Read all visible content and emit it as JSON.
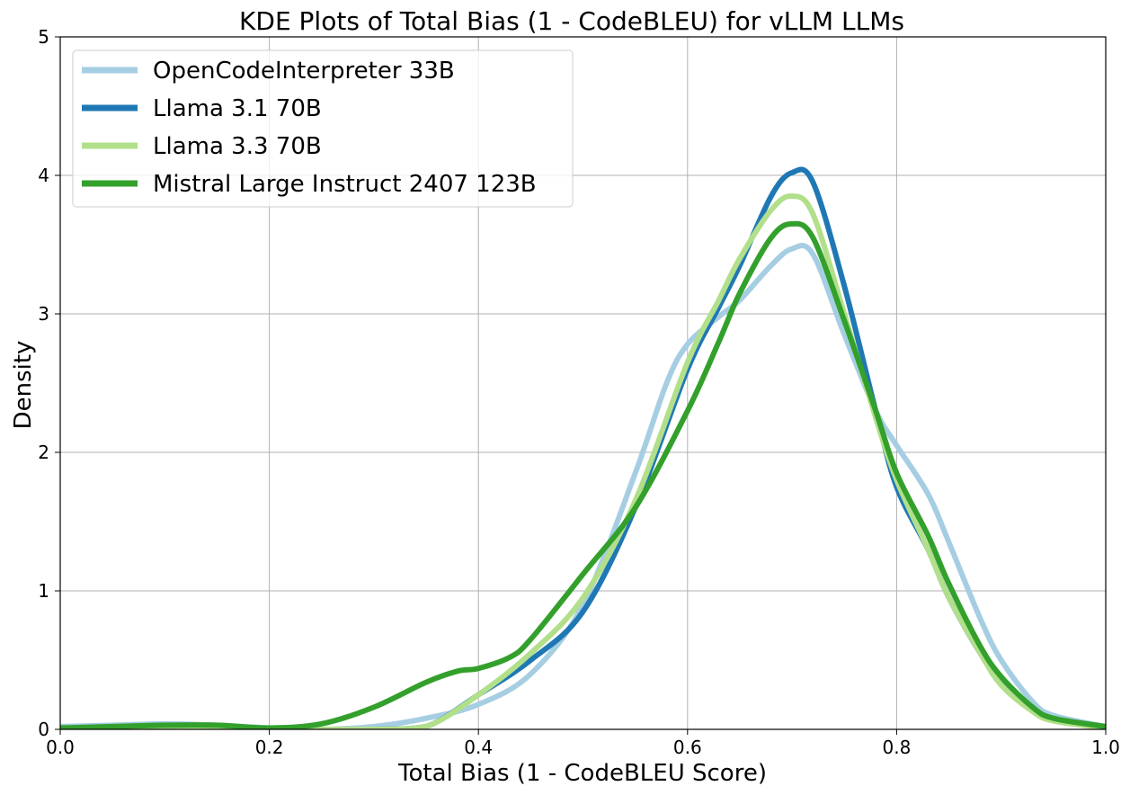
{
  "chart_data": {
    "type": "line",
    "title": "KDE Plots of Total Bias (1 - CodeBLEU) for vLLM LLMs",
    "xlabel": "Total Bias (1 - CodeBLEU Score)",
    "ylabel": "Density",
    "xlim": [
      0.0,
      1.0
    ],
    "ylim": [
      0,
      5
    ],
    "xticks": [
      "0.0",
      "0.2",
      "0.4",
      "0.6",
      "0.8",
      "1.0"
    ],
    "yticks": [
      "0",
      "1",
      "2",
      "3",
      "4",
      "5"
    ],
    "grid": true,
    "legend_position": "top-left",
    "series": [
      {
        "name": "OpenCodeInterpreter 33B",
        "color": "#a6cee3",
        "points": [
          [
            0.0,
            0.02
          ],
          [
            0.05,
            0.03
          ],
          [
            0.1,
            0.04
          ],
          [
            0.15,
            0.03
          ],
          [
            0.2,
            0.01
          ],
          [
            0.25,
            0.0
          ],
          [
            0.3,
            0.02
          ],
          [
            0.35,
            0.08
          ],
          [
            0.4,
            0.18
          ],
          [
            0.45,
            0.4
          ],
          [
            0.5,
            0.9
          ],
          [
            0.55,
            1.85
          ],
          [
            0.58,
            2.5
          ],
          [
            0.6,
            2.78
          ],
          [
            0.63,
            2.98
          ],
          [
            0.65,
            3.1
          ],
          [
            0.68,
            3.35
          ],
          [
            0.7,
            3.47
          ],
          [
            0.72,
            3.43
          ],
          [
            0.75,
            2.85
          ],
          [
            0.78,
            2.3
          ],
          [
            0.8,
            2.05
          ],
          [
            0.83,
            1.7
          ],
          [
            0.85,
            1.35
          ],
          [
            0.88,
            0.8
          ],
          [
            0.9,
            0.5
          ],
          [
            0.93,
            0.2
          ],
          [
            0.95,
            0.1
          ],
          [
            1.0,
            0.02
          ]
        ]
      },
      {
        "name": "Llama 3.1 70B",
        "color": "#1f78b4",
        "points": [
          [
            0.0,
            0.0
          ],
          [
            0.1,
            0.0
          ],
          [
            0.2,
            0.0
          ],
          [
            0.3,
            0.0
          ],
          [
            0.35,
            0.02
          ],
          [
            0.4,
            0.25
          ],
          [
            0.45,
            0.5
          ],
          [
            0.5,
            0.85
          ],
          [
            0.55,
            1.6
          ],
          [
            0.6,
            2.6
          ],
          [
            0.63,
            3.05
          ],
          [
            0.65,
            3.35
          ],
          [
            0.68,
            3.85
          ],
          [
            0.7,
            4.02
          ],
          [
            0.72,
            3.95
          ],
          [
            0.75,
            3.2
          ],
          [
            0.78,
            2.3
          ],
          [
            0.8,
            1.75
          ],
          [
            0.83,
            1.3
          ],
          [
            0.85,
            0.95
          ],
          [
            0.88,
            0.55
          ],
          [
            0.9,
            0.35
          ],
          [
            0.93,
            0.15
          ],
          [
            0.95,
            0.07
          ],
          [
            1.0,
            0.01
          ]
        ]
      },
      {
        "name": "Llama 3.3 70B",
        "color": "#b2df8a",
        "points": [
          [
            0.0,
            0.0
          ],
          [
            0.1,
            0.0
          ],
          [
            0.2,
            0.0
          ],
          [
            0.3,
            0.0
          ],
          [
            0.35,
            0.02
          ],
          [
            0.4,
            0.25
          ],
          [
            0.45,
            0.55
          ],
          [
            0.5,
            0.95
          ],
          [
            0.55,
            1.65
          ],
          [
            0.6,
            2.65
          ],
          [
            0.63,
            3.1
          ],
          [
            0.65,
            3.4
          ],
          [
            0.68,
            3.75
          ],
          [
            0.7,
            3.85
          ],
          [
            0.72,
            3.72
          ],
          [
            0.75,
            3.0
          ],
          [
            0.78,
            2.25
          ],
          [
            0.8,
            1.8
          ],
          [
            0.83,
            1.3
          ],
          [
            0.85,
            0.95
          ],
          [
            0.88,
            0.55
          ],
          [
            0.9,
            0.32
          ],
          [
            0.93,
            0.13
          ],
          [
            0.95,
            0.06
          ],
          [
            1.0,
            0.01
          ]
        ]
      },
      {
        "name": "Mistral Large Instruct 2407 123B",
        "color": "#33a02c",
        "points": [
          [
            0.0,
            0.01
          ],
          [
            0.05,
            0.02
          ],
          [
            0.1,
            0.03
          ],
          [
            0.15,
            0.03
          ],
          [
            0.2,
            0.01
          ],
          [
            0.25,
            0.04
          ],
          [
            0.3,
            0.16
          ],
          [
            0.35,
            0.34
          ],
          [
            0.38,
            0.42
          ],
          [
            0.4,
            0.44
          ],
          [
            0.43,
            0.52
          ],
          [
            0.45,
            0.65
          ],
          [
            0.5,
            1.12
          ],
          [
            0.55,
            1.6
          ],
          [
            0.6,
            2.3
          ],
          [
            0.63,
            2.8
          ],
          [
            0.65,
            3.15
          ],
          [
            0.68,
            3.55
          ],
          [
            0.7,
            3.65
          ],
          [
            0.72,
            3.55
          ],
          [
            0.75,
            2.95
          ],
          [
            0.78,
            2.3
          ],
          [
            0.8,
            1.85
          ],
          [
            0.83,
            1.4
          ],
          [
            0.85,
            1.05
          ],
          [
            0.88,
            0.6
          ],
          [
            0.9,
            0.38
          ],
          [
            0.93,
            0.16
          ],
          [
            0.95,
            0.08
          ],
          [
            1.0,
            0.02
          ]
        ]
      }
    ]
  }
}
